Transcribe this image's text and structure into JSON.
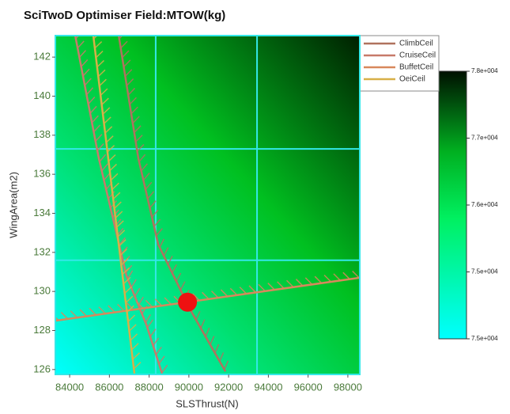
{
  "chart_data": {
    "type": "contour",
    "title": "SciTwoD Optimiser Field:MTOW(kg)",
    "xlabel": "SLSThrust(N)",
    "ylabel": "WingArea(m2)",
    "xlim": [
      83280,
      98600
    ],
    "ylim": [
      125.75,
      143.1
    ],
    "xticks": [
      84000,
      86000,
      88000,
      90000,
      92000,
      94000,
      96000,
      98000
    ],
    "yticks": [
      126,
      128,
      130,
      132,
      134,
      136,
      138,
      140,
      142
    ],
    "grid_x": [
      88330,
      93430
    ],
    "grid_y": [
      137.3,
      131.6
    ],
    "grid_color": "#33e8e8",
    "series": [
      {
        "name": "ClimbCeil",
        "color": "#b0725e",
        "x": [
          86470,
          87460,
          88460,
          90050,
          91840
        ],
        "y": [
          143.1,
          136.8,
          132.4,
          129.1,
          125.9
        ]
      },
      {
        "name": "CruiseCeil",
        "color": "#c77a6a",
        "x": [
          84280,
          85470,
          86860,
          87860,
          88650
        ],
        "y": [
          143.1,
          136.8,
          130.8,
          128.3,
          125.8
        ]
      },
      {
        "name": "BuffetCeil",
        "color": "#d8885c",
        "x": [
          83280,
          98600
        ],
        "y": [
          128.5,
          130.7
        ]
      },
      {
        "name": "OeiCeil",
        "color": "#d8b048",
        "x": [
          85190,
          87260
        ],
        "y": [
          143.1,
          125.8
        ]
      }
    ],
    "optimum": {
      "x": 89930,
      "y": 129.45,
      "color": "#ee1111"
    },
    "colorbar": {
      "clim": [
        74720,
        77600
      ],
      "ticks": [
        {
          "value": 77600,
          "label": "7.8e+004"
        },
        {
          "value": 76880,
          "label": "7.7e+004"
        },
        {
          "value": 76160,
          "label": "7.6e+004"
        },
        {
          "value": 75440,
          "label": "7.5e+004"
        },
        {
          "value": 74720,
          "label": "7.5e+004"
        }
      ]
    }
  }
}
